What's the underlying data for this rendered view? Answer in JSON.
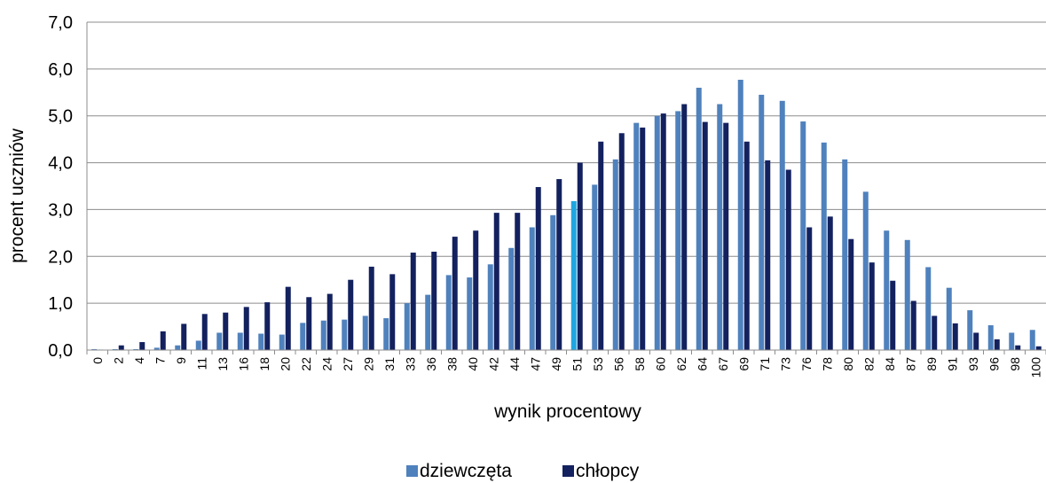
{
  "chart_data": {
    "type": "bar",
    "title": "",
    "xlabel": "wynik procentowy",
    "ylabel": "procent uczniów",
    "ylim": [
      0,
      7
    ],
    "y_ticks": [
      "0,0",
      "1,0",
      "2,0",
      "3,0",
      "4,0",
      "5,0",
      "6,0",
      "7,0"
    ],
    "grid": true,
    "legend_position": "bottom",
    "categories": [
      "0",
      "2",
      "4",
      "7",
      "9",
      "11",
      "13",
      "16",
      "18",
      "20",
      "22",
      "24",
      "27",
      "29",
      "31",
      "33",
      "36",
      "38",
      "40",
      "42",
      "44",
      "47",
      "49",
      "51",
      "53",
      "56",
      "58",
      "60",
      "62",
      "64",
      "67",
      "69",
      "71",
      "73",
      "76",
      "78",
      "80",
      "82",
      "84",
      "87",
      "89",
      "91",
      "93",
      "96",
      "98",
      "100"
    ],
    "highlight_index": 23,
    "highlight_color": "#1ea6e0",
    "series": [
      {
        "name": "dziewczęta",
        "color": "#4f81bd",
        "values": [
          0.02,
          0.02,
          0.02,
          0.05,
          0.1,
          0.2,
          0.37,
          0.37,
          0.35,
          0.33,
          0.58,
          0.63,
          0.65,
          0.73,
          0.68,
          1.0,
          1.18,
          1.6,
          1.55,
          1.83,
          2.18,
          2.62,
          2.88,
          3.18,
          3.53,
          4.07,
          4.85,
          5.0,
          5.1,
          5.6,
          5.25,
          5.77,
          5.45,
          5.32,
          4.88,
          4.43,
          4.07,
          3.38,
          2.55,
          2.35,
          1.77,
          1.33,
          0.85,
          0.53,
          0.37,
          0.43
        ]
      },
      {
        "name": "chłopcy",
        "color": "#13215f",
        "values": [
          0.01,
          0.1,
          0.17,
          0.4,
          0.56,
          0.77,
          0.8,
          0.92,
          1.02,
          1.35,
          1.13,
          1.2,
          1.5,
          1.78,
          1.62,
          2.08,
          2.1,
          2.42,
          2.55,
          2.93,
          2.93,
          3.48,
          3.65,
          4.0,
          4.45,
          4.63,
          4.75,
          5.05,
          5.25,
          4.87,
          4.85,
          4.45,
          4.05,
          3.85,
          2.62,
          2.85,
          2.37,
          1.87,
          1.48,
          1.05,
          0.73,
          0.57,
          0.37,
          0.23,
          0.1,
          0.08
        ]
      }
    ]
  }
}
